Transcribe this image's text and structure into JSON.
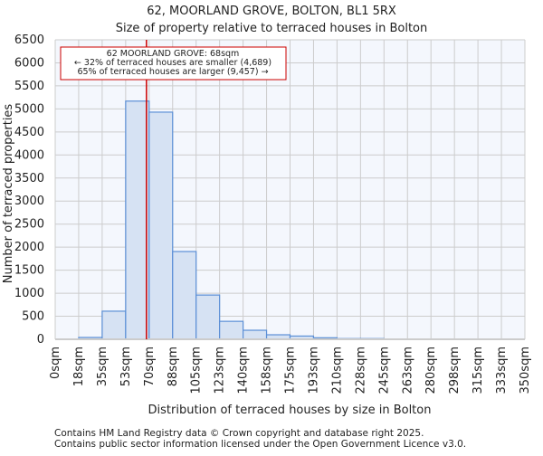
{
  "chart_data": {
    "type": "bar",
    "title": "62, MOORLAND GROVE, BOLTON, BL1 5RX",
    "subtitle": "Size of property relative to terraced houses in Bolton",
    "xlabel": "Distribution of terraced houses by size in Bolton",
    "ylabel": "Number of terraced properties",
    "x_ticks": [
      "0sqm",
      "18sqm",
      "35sqm",
      "53sqm",
      "70sqm",
      "88sqm",
      "105sqm",
      "123sqm",
      "140sqm",
      "158sqm",
      "175sqm",
      "193sqm",
      "210sqm",
      "228sqm",
      "245sqm",
      "263sqm",
      "280sqm",
      "298sqm",
      "315sqm",
      "333sqm",
      "350sqm"
    ],
    "bin_edges": [
      0,
      17.5,
      35,
      52.5,
      70,
      87.5,
      105,
      122.5,
      140,
      157.5,
      175,
      192.5,
      210,
      227.5,
      245,
      262.5,
      280,
      297.5,
      315,
      332.5,
      350
    ],
    "values": [
      0,
      40,
      610,
      5170,
      4930,
      1905,
      960,
      390,
      196,
      98,
      70,
      33,
      15,
      15,
      0,
      0,
      0,
      0,
      0,
      0
    ],
    "ylim": [
      0,
      6500
    ],
    "y_ticks": [
      0,
      500,
      1000,
      1500,
      2000,
      2500,
      3000,
      3500,
      4000,
      4500,
      5000,
      5500,
      6000,
      6500
    ],
    "grid": true,
    "marker_value": 68,
    "annotation": [
      "62 MOORLAND GROVE: 68sqm",
      "← 32% of terraced houses are smaller (4,689)",
      "65% of terraced houses are larger (9,457) →"
    ],
    "colors": {
      "bar_fill": "#d6e2f3",
      "bar_edge": "#5b8fd6",
      "marker": "#cc0000",
      "plot_bg": "#f4f7fd",
      "grid": "#cccccc"
    }
  },
  "footer": [
    "Contains HM Land Registry data © Crown copyright and database right 2025.",
    "Contains public sector information licensed under the Open Government Licence v3.0."
  ]
}
